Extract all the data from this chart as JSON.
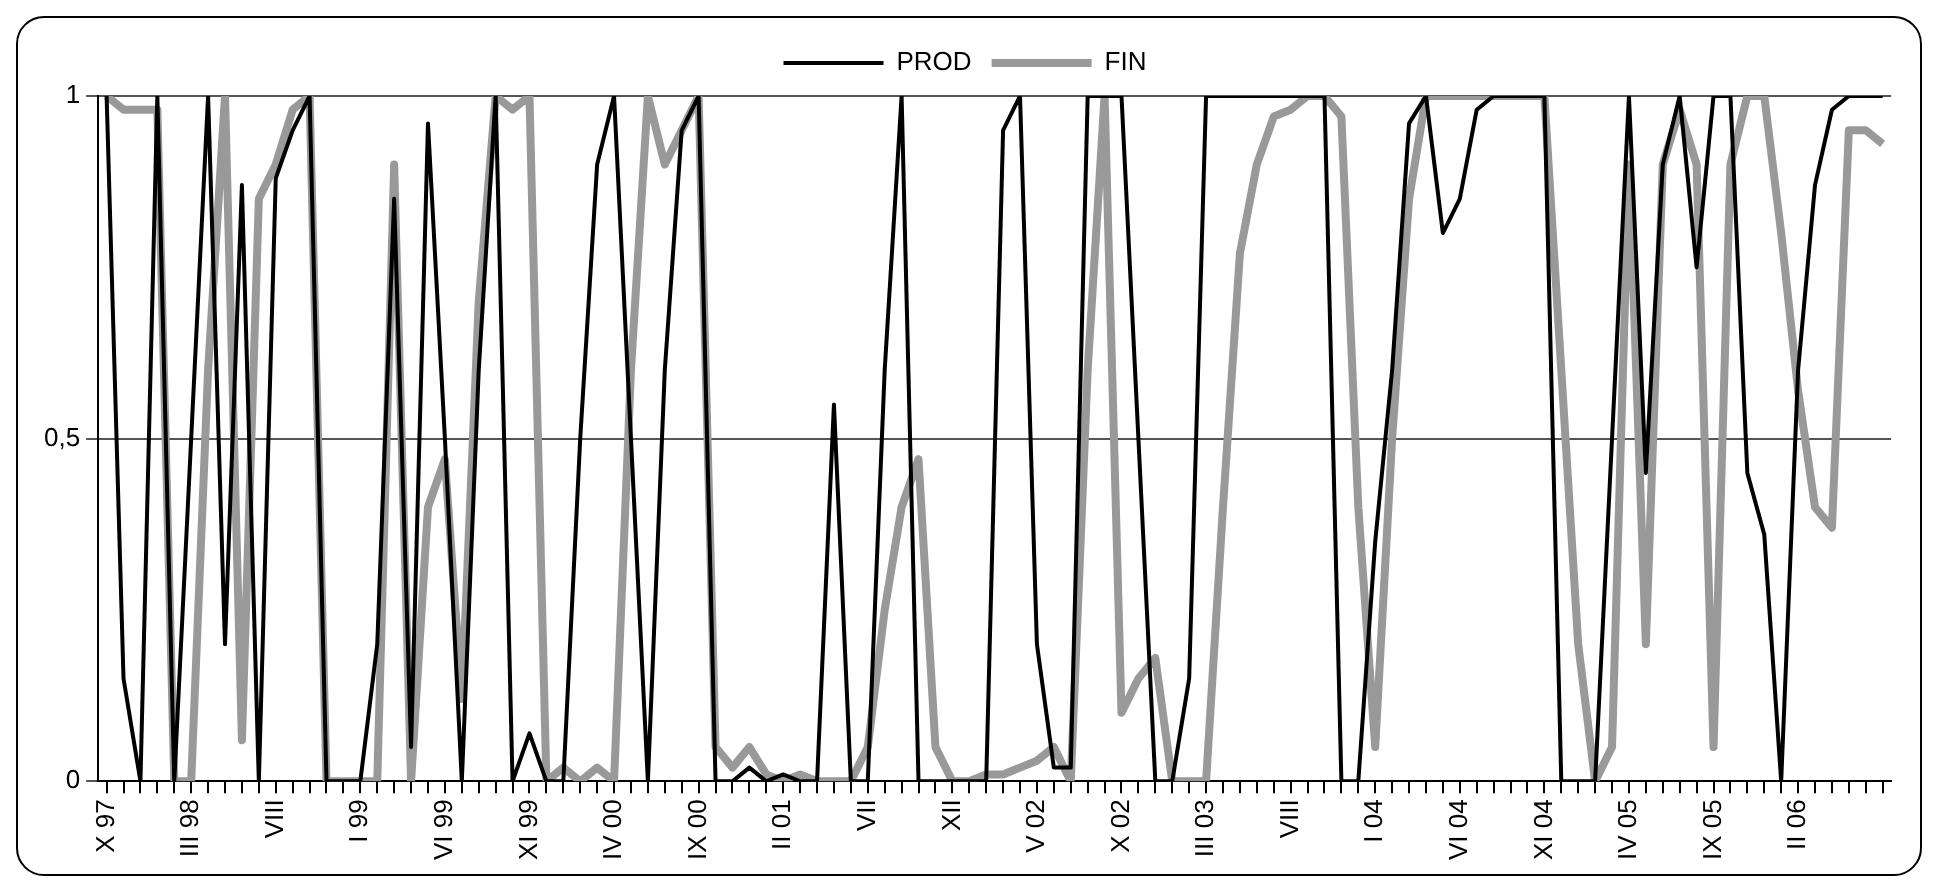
{
  "chart_data": {
    "type": "line",
    "categories": [
      "X 97",
      null,
      null,
      null,
      null,
      "III 98",
      null,
      null,
      null,
      null,
      "VIII",
      null,
      null,
      null,
      null,
      "I 99",
      null,
      null,
      null,
      null,
      "VI 99",
      null,
      null,
      null,
      null,
      "XI 99",
      null,
      null,
      null,
      null,
      "IV 00",
      null,
      null,
      null,
      null,
      "IX 00",
      null,
      null,
      null,
      null,
      "II 01",
      null,
      null,
      null,
      null,
      "VII",
      null,
      null,
      null,
      null,
      "XII",
      null,
      null,
      null,
      null,
      "V 02",
      null,
      null,
      null,
      null,
      "X 02",
      null,
      null,
      null,
      null,
      "III 03",
      null,
      null,
      null,
      null,
      "VIII",
      null,
      null,
      null,
      null,
      "I 04",
      null,
      null,
      null,
      null,
      "VI 04",
      null,
      null,
      null,
      null,
      "XI 04",
      null,
      null,
      null,
      null,
      "IV 05",
      null,
      null,
      null,
      null,
      "IX 05",
      null,
      null,
      null,
      null,
      "II 06",
      null,
      null,
      null,
      null,
      null
    ],
    "series": [
      {
        "name": "PROD",
        "color": "#000000",
        "values": [
          1,
          0.15,
          0,
          1,
          0,
          0.5,
          1,
          0.2,
          0.87,
          0,
          0.88,
          0.95,
          1,
          0,
          0,
          0,
          0.2,
          0.85,
          0.05,
          0.96,
          0.5,
          0,
          0.6,
          1,
          0,
          0.07,
          0,
          0,
          0.5,
          0.9,
          1,
          0.5,
          0,
          0.6,
          0.95,
          1,
          0,
          0,
          0.02,
          0,
          0.01,
          0,
          0,
          0.55,
          0,
          0,
          0.6,
          1,
          0,
          0,
          0,
          0,
          0,
          0.95,
          1,
          0.2,
          0.02,
          0.02,
          1,
          1,
          1,
          0.5,
          0,
          0,
          0.15,
          1,
          1,
          1,
          1,
          1,
          1,
          1,
          1,
          0,
          0,
          0.35,
          0.6,
          0.96,
          1,
          0.8,
          0.85,
          0.98,
          1,
          1,
          1,
          1,
          0,
          0,
          0,
          0.5,
          1,
          0.45,
          0.9,
          1,
          0.75,
          1,
          1,
          0.45,
          0.36,
          0,
          0.6,
          0.87,
          0.98,
          1,
          1,
          1
        ]
      },
      {
        "name": "FIN",
        "color": "#999999",
        "values": [
          1,
          0.98,
          0.98,
          0.98,
          0,
          0,
          0.6,
          1,
          0.06,
          0.85,
          0.9,
          0.98,
          1,
          0,
          0,
          0,
          0,
          0.9,
          0,
          0.4,
          0.47,
          0.12,
          0.7,
          1,
          0.98,
          1,
          0,
          0.02,
          0,
          0.02,
          0,
          0.6,
          1,
          0.9,
          0.95,
          1,
          0.05,
          0.02,
          0.05,
          0.01,
          0,
          0.01,
          0,
          0,
          0,
          0.05,
          0.25,
          0.4,
          0.47,
          0.05,
          0,
          0,
          0.01,
          0.01,
          0.02,
          0.03,
          0.05,
          0,
          0.6,
          1,
          0.1,
          0.15,
          0.18,
          0,
          0,
          0,
          0.4,
          0.77,
          0.9,
          0.97,
          0.98,
          1,
          1,
          0.97,
          0.4,
          0.05,
          0.5,
          0.85,
          1,
          1,
          1,
          1,
          1,
          1,
          1,
          1,
          0.6,
          0.2,
          0,
          0.05,
          0.9,
          0.2,
          0.9,
          0.98,
          0.9,
          0.05,
          0.9,
          1,
          1,
          0.8,
          0.57,
          0.4,
          0.37,
          0.95,
          0.95,
          0.93
        ]
      }
    ],
    "ylim": [
      0,
      1
    ],
    "yticks": [
      0,
      {
        "value": 0.5,
        "label": "0,5"
      },
      1
    ],
    "grid": "y",
    "legend": "top",
    "marker": "none",
    "line_style": "solid"
  }
}
